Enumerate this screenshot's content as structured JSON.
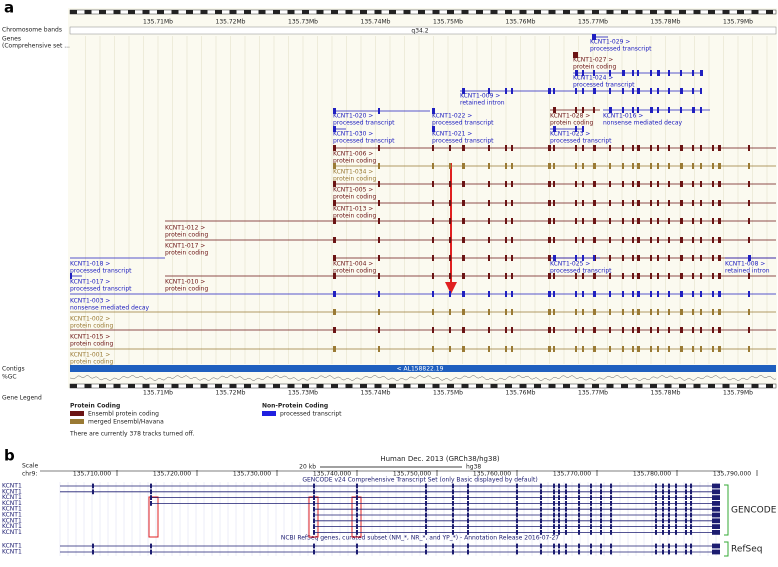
{
  "panel_a": {
    "label": "a",
    "ruler_ticks": [
      "135.71Mb",
      "135.72Mb",
      "135.73Mb",
      "135.74Mb",
      "135.75Mb",
      "135.76Mb",
      "135.77Mb",
      "135.78Mb",
      "135.79Mb"
    ],
    "band": "q34.2",
    "track_labels": {
      "chromosome_bands": "Chromosome bands",
      "genes": [
        "Genes",
        "(Comprehensive set ..."
      ],
      "contigs": "Contigs",
      "gc": "%GC",
      "legend": "Gene Legend"
    },
    "transcripts": [
      {
        "name": "KCNT1-029 >",
        "type": "processed transcript"
      },
      {
        "name": "KCNT1-027 >",
        "type": "protein coding"
      },
      {
        "name": "KCNT1-024 >",
        "type": "processed transcript"
      },
      {
        "name": "KCNT1-009 >",
        "type": "retained intron"
      },
      {
        "name": "KCNT1-020 >",
        "type": "processed transcript"
      },
      {
        "name": "KCNT1-022 >",
        "type": "processed transcript"
      },
      {
        "name": "KCNT1-028 >",
        "type": "protein coding"
      },
      {
        "name": "KCNT1-016 >",
        "type": "nonsense mediated decay"
      },
      {
        "name": "KCNT1-030 >",
        "type": "processed transcript"
      },
      {
        "name": "KCNT1-021 >",
        "type": "processed transcript"
      },
      {
        "name": "KCNT1-023 >",
        "type": "processed transcript"
      },
      {
        "name": "KCNT1-006 >",
        "type": "protein coding"
      },
      {
        "name": "KCNT1-034 >",
        "type": "protein coding"
      },
      {
        "name": "KCNT1-005 >",
        "type": "protein coding"
      },
      {
        "name": "KCNT1-013 >",
        "type": "protein coding"
      },
      {
        "name": "KCNT1-012 >",
        "type": "protein coding"
      },
      {
        "name": "KCNT1-017 >",
        "type": "protein coding"
      },
      {
        "name": "KCNT1-018 >",
        "type": "processed transcript"
      },
      {
        "name": "KCNT1-004 >",
        "type": "protein coding"
      },
      {
        "name": "KCNT1-025 >",
        "type": "processed transcript"
      },
      {
        "name": "KCNT1-008 >",
        "type": "retained intron"
      },
      {
        "name": "KCNT1-017 >",
        "type": "processed transcript"
      },
      {
        "name": "KCNT1-010 >",
        "type": "protein coding"
      },
      {
        "name": "KCNT1-003 >",
        "type": "nonsense mediated decay"
      },
      {
        "name": "KCNT1-002 >",
        "type": "protein coding"
      },
      {
        "name": "KCNT1-015 >",
        "type": "protein coding"
      },
      {
        "name": "KCNT1-001 >",
        "type": "protein coding"
      }
    ],
    "contig": "< AL158822.19",
    "legend": {
      "protein_heading": "Protein Coding",
      "ensembl": "Ensembl protein coding",
      "merged": "merged Ensembl/Havana",
      "nonprotein_heading": "Non-Protein Coding",
      "processed": "processed transcript"
    },
    "note": "There are currently 378 tracks turned off."
  },
  "panel_b": {
    "label": "b",
    "scale": "Scale",
    "chrom": "chr9:",
    "scale_bar": "20 kb",
    "assembly": "hg38",
    "title": "Human Dec. 2013 (GRCh38/hg38)",
    "positions": [
      "135,710,000",
      "135,720,000",
      "135,730,000",
      "135,740,000",
      "135,750,000",
      "135,760,000",
      "135,770,000",
      "135,780,000",
      "135,790,000"
    ],
    "gencode_title": "GENCODE v24 Comprehensive Transcript Set (only Basic displayed by default)",
    "refseq_title": "NCBI RefSeq genes, curated subset (NM_*, NR_*, and YP_*) - Annotation Release 2016-07-27",
    "gencode_rows": [
      "KCNT1",
      "KCNT1",
      "KCNT1",
      "KCNT1",
      "KCNT1",
      "KCNT1",
      "KCNT1",
      "KCNT1",
      "KCNT1"
    ],
    "refseq_rows": [
      "KCNT1",
      "KCNT1"
    ],
    "gencode_label": "GENCODE",
    "refseq_label": "RefSeq"
  }
}
